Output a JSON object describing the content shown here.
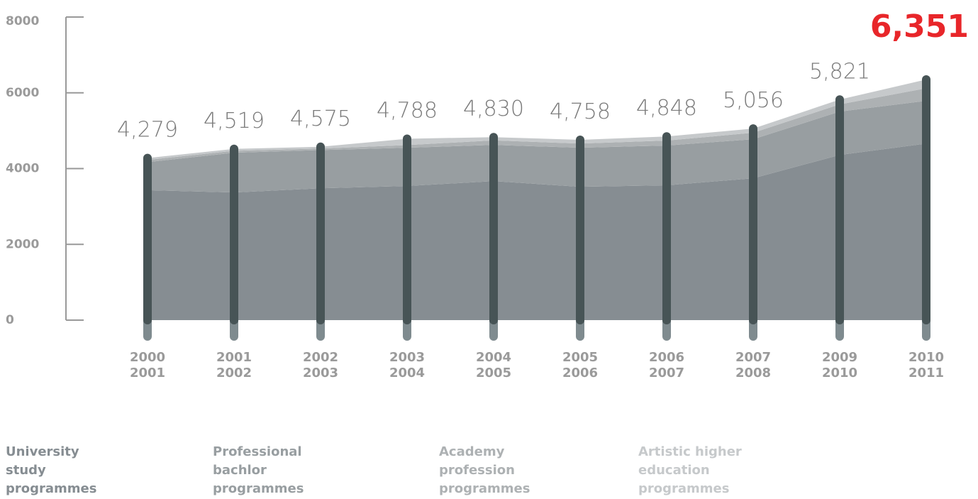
{
  "chart_data": {
    "type": "stacked-area",
    "categories": [
      "2000 2001",
      "2001 2002",
      "2002 2003",
      "2003 2004",
      "2004 2005",
      "2005 2006",
      "2006 2007",
      "2007 2008",
      "2009 2010",
      "2010 2011"
    ],
    "series": [
      {
        "name": "University study programmes",
        "color": "#868d92",
        "values": [
          3430,
          3370,
          3480,
          3540,
          3670,
          3520,
          3560,
          3745,
          4360,
          4660
        ]
      },
      {
        "name": "Professional bachlor programmes",
        "color": "#989ea1",
        "values": [
          740,
          1050,
          1010,
          1010,
          955,
          1030,
          1050,
          1030,
          1145,
          1130
        ]
      },
      {
        "name": "Academy profession programmes",
        "color": "#adb1b3",
        "values": [
          60,
          50,
          40,
          70,
          120,
          110,
          130,
          170,
          190,
          330
        ]
      },
      {
        "name": "Artistic higher education programmes",
        "color": "#c6c9cb",
        "values": [
          49,
          49,
          45,
          168,
          85,
          98,
          108,
          111,
          126,
          231
        ]
      }
    ],
    "totals": [
      4279,
      4519,
      4575,
      4788,
      4830,
      4758,
      4848,
      5056,
      5821,
      6351
    ],
    "value_labels": [
      "4,279",
      "4,519",
      "4,575",
      "4,788",
      "4,830",
      "4,758",
      "4,848",
      "5,056",
      "5,821",
      "6,351"
    ],
    "highlight_color": "#e8262a",
    "ylim": [
      0,
      8000
    ],
    "yticks": [
      0,
      2000,
      4000,
      6000,
      8000
    ]
  }
}
